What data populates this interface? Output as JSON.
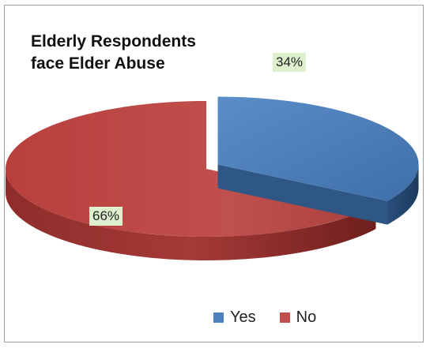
{
  "chart_data": {
    "type": "pie",
    "style": "3d-exploded",
    "title": "Elderly Respondents\nface Elder Abuse",
    "categories": [
      "Yes",
      "No"
    ],
    "values": [
      34,
      66
    ],
    "data_labels": [
      "34%",
      "66%"
    ],
    "colors": {
      "Yes": "#4f81bd",
      "No": "#c0504d",
      "label_background": "#dff0cf"
    },
    "legend": {
      "placement": "bottom",
      "entries": [
        {
          "label": "Yes",
          "color": "#4f81bd"
        },
        {
          "label": "No",
          "color": "#c0504d"
        }
      ]
    }
  }
}
